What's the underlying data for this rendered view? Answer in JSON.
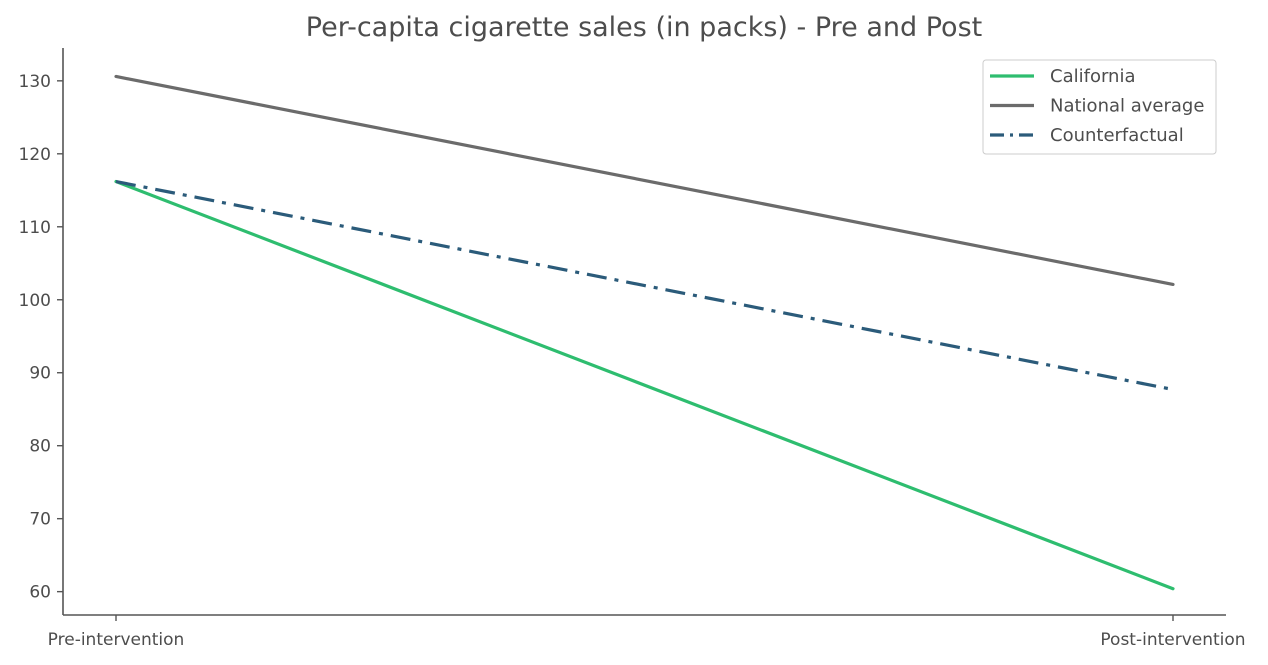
{
  "chart_data": {
    "type": "line",
    "title": "Per-capita cigarette sales (in packs) - Pre and Post",
    "xlabel": "",
    "ylabel": "",
    "categories": [
      "Pre-intervention",
      "Post-intervention"
    ],
    "ylim": [
      56.8,
      134.5
    ],
    "yticks": [
      60,
      70,
      80,
      90,
      100,
      110,
      120,
      130
    ],
    "grid": false,
    "legend_position": "top-right",
    "series": [
      {
        "name": "California",
        "values": [
          116.2,
          60.4
        ],
        "color": "#2ebd6f",
        "style": "solid"
      },
      {
        "name": "National average",
        "values": [
          130.6,
          102.1
        ],
        "color": "#6b6b6b",
        "style": "solid"
      },
      {
        "name": "Counterfactual",
        "values": [
          116.2,
          87.7
        ],
        "color": "#2b5b7a",
        "style": "dashdot"
      }
    ]
  }
}
